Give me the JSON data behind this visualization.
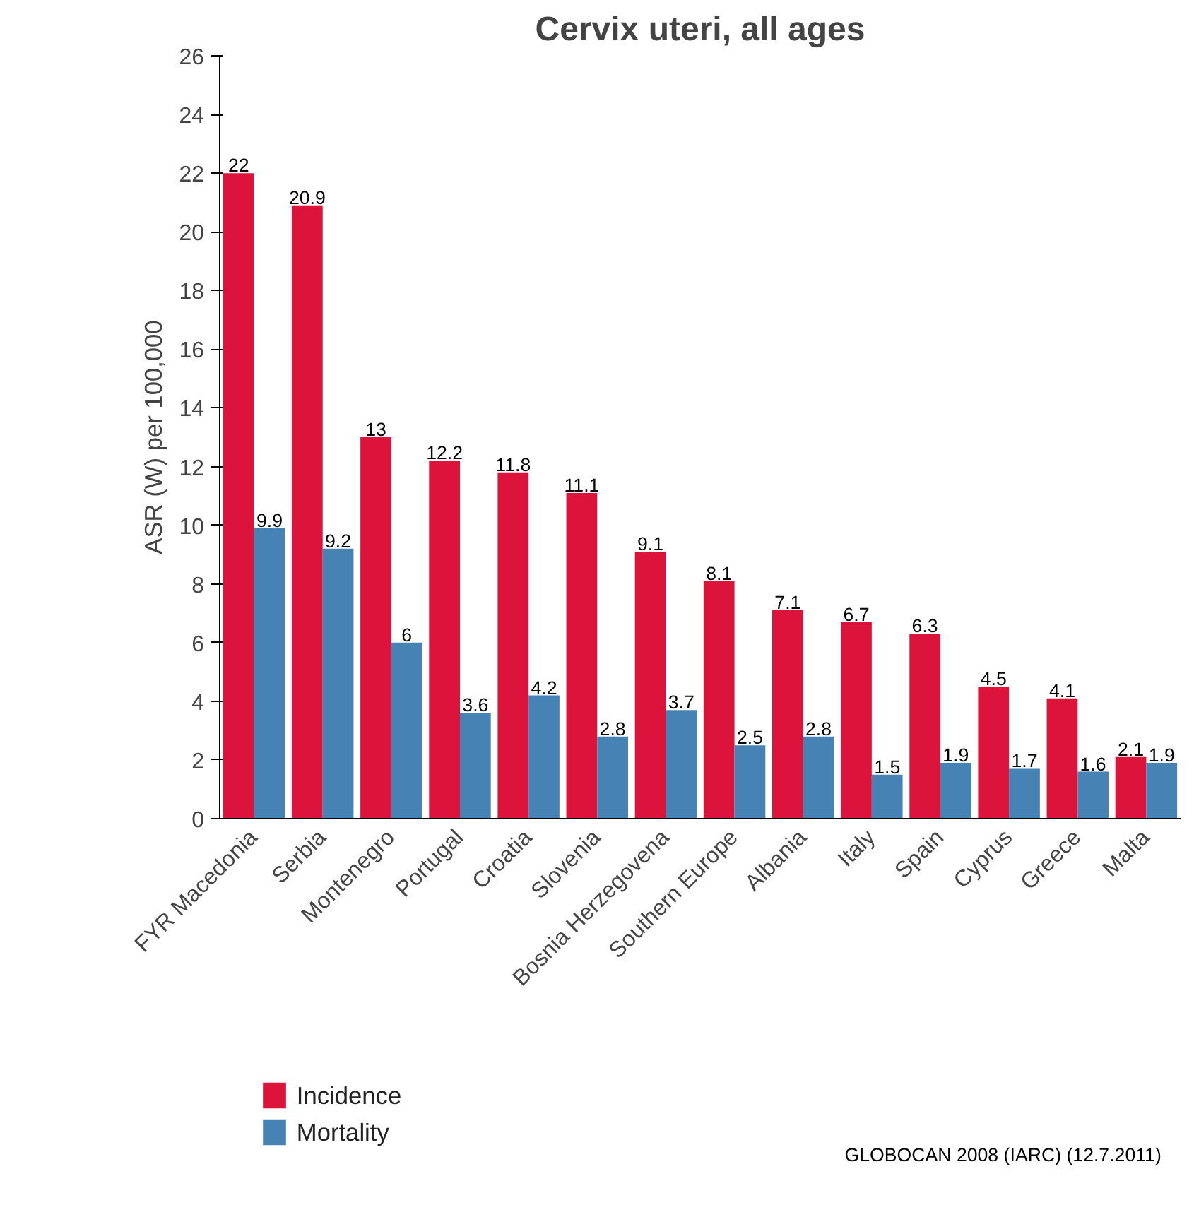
{
  "chart_data": {
    "type": "bar",
    "title": "Cervix uteri, all ages",
    "ylabel": "ASR (W) per 100,000",
    "categories": [
      "FYR Macedonia",
      "Serbia",
      "Montenegro",
      "Portugal",
      "Croatia",
      "Slovenia",
      "Bosnia Herzegovena",
      "Southern Europe",
      "Albania",
      "Italy",
      "Spain",
      "Cyprus",
      "Greece",
      "Malta"
    ],
    "series": [
      {
        "name": "Incidence",
        "color": "#dc143c",
        "values": [
          22,
          20.9,
          13,
          12.2,
          11.8,
          11.1,
          9.1,
          8.1,
          7.1,
          6.7,
          6.3,
          4.5,
          4.1,
          2.1
        ]
      },
      {
        "name": "Mortality",
        "color": "#4682b4",
        "values": [
          9.9,
          9.2,
          6,
          3.6,
          4.2,
          2.8,
          3.7,
          2.5,
          2.8,
          1.5,
          1.9,
          1.7,
          1.6,
          1.9
        ]
      }
    ],
    "ylim": [
      0,
      26
    ],
    "yticks": [
      0,
      2,
      4,
      6,
      8,
      10,
      12,
      14,
      16,
      18,
      20,
      22,
      24,
      26
    ],
    "data_labels": true,
    "grid": false,
    "legend": "bottom left",
    "annotations": [
      "GLOBOCAN 2008 (IARC) (12.7.2011)"
    ]
  }
}
